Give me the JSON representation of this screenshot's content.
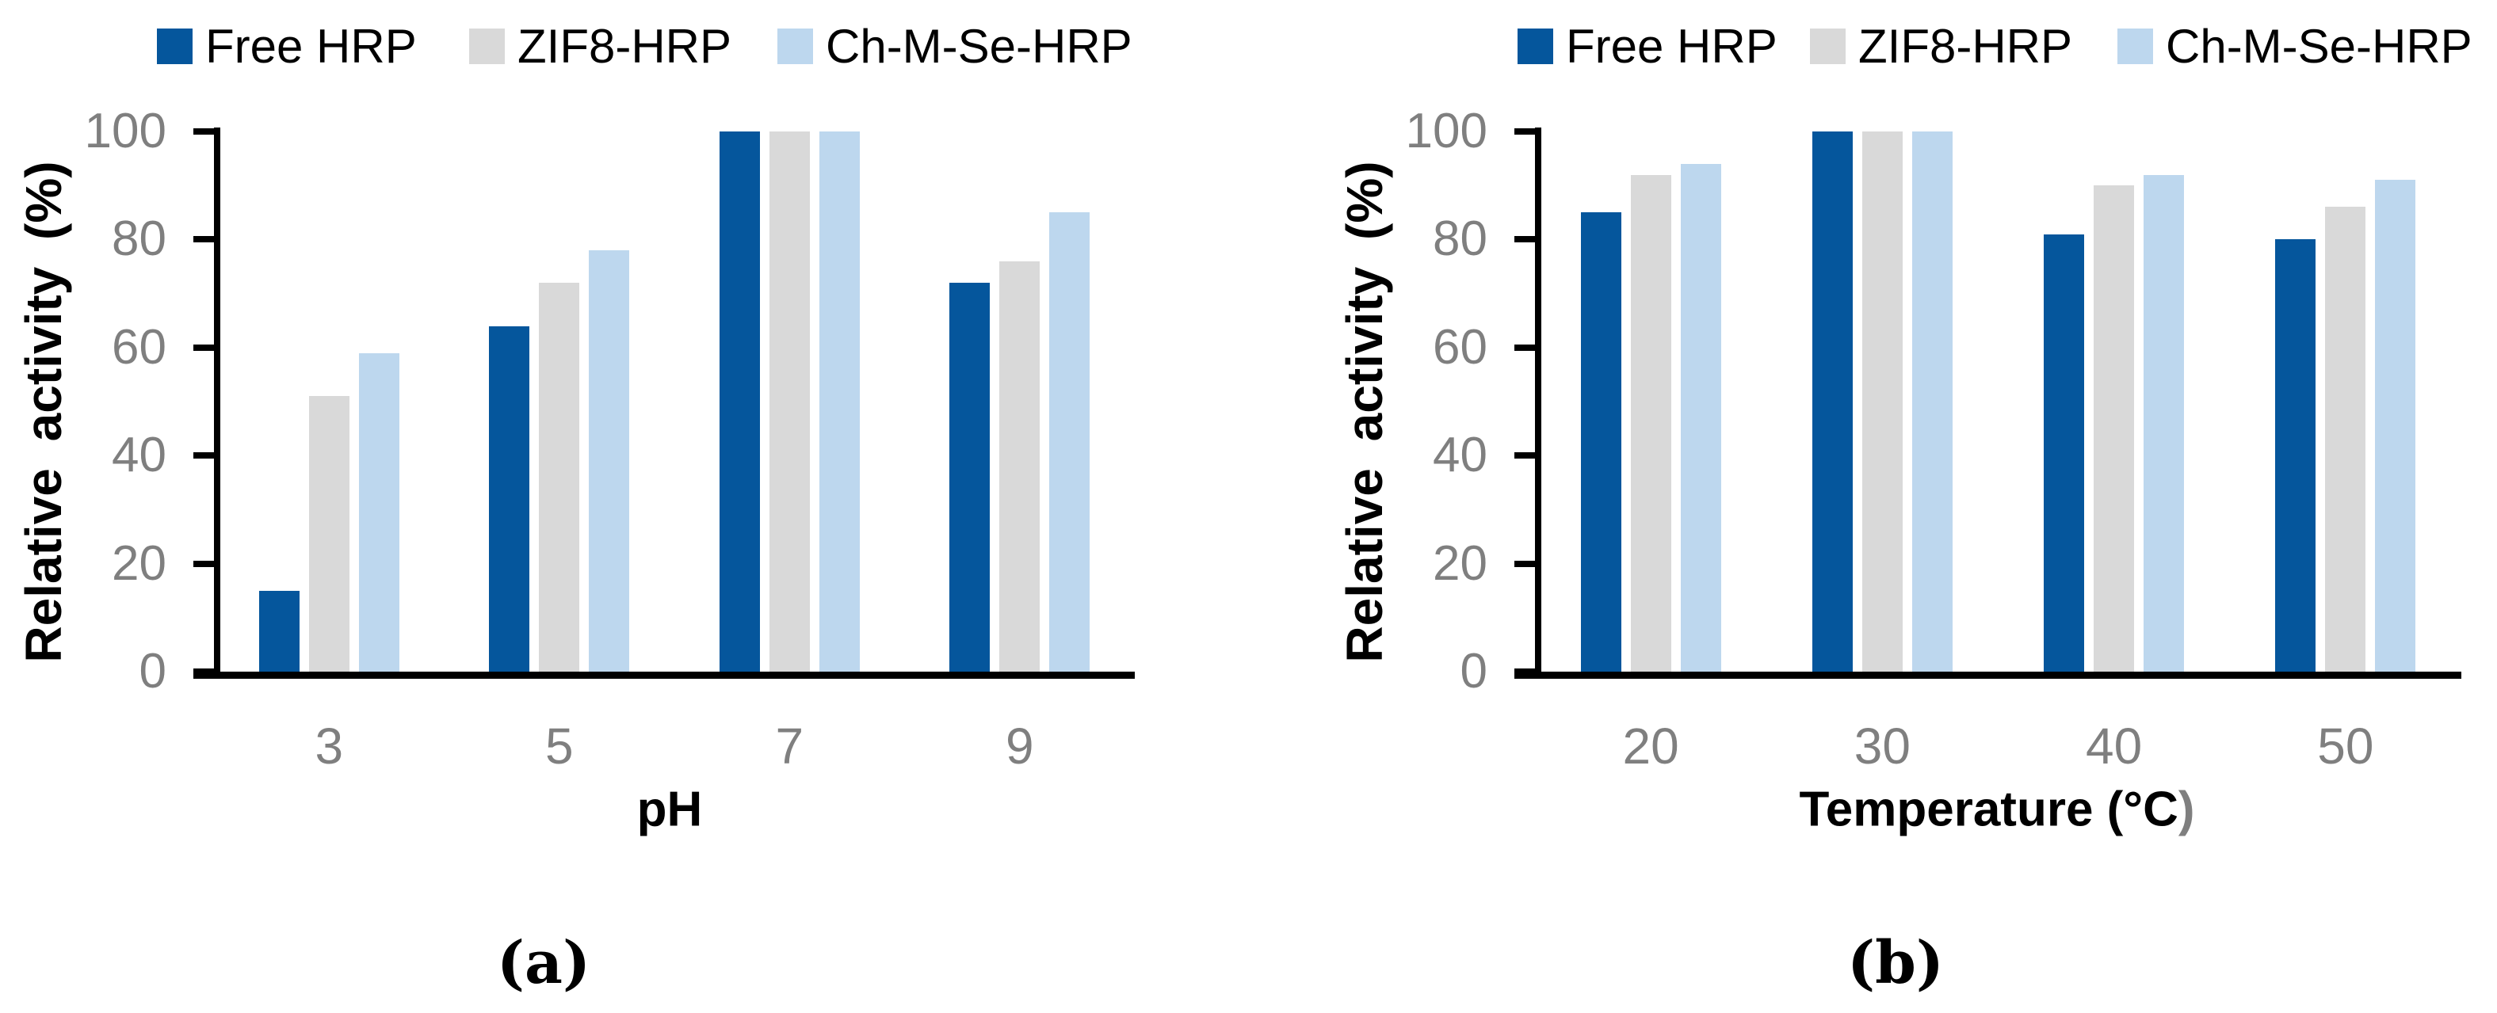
{
  "colors": {
    "series_free_hrp": "#05569C",
    "series_zif8_hrp": "#D9D9D9",
    "series_ch_m_se_hrp": "#BDD7EE",
    "axis_line": "#000000",
    "tick_label_gray": "#7F7F7F",
    "xlabel_paren_gray": "#7F7F7F",
    "background": "#FFFFFF"
  },
  "chart_data": [
    {
      "id": "a",
      "type": "bar",
      "caption": "(a)",
      "ylabel": "Relative activity (%)",
      "xlabel": "pH",
      "xlabel_parts": {
        "black": "pH",
        "gray": ""
      },
      "ylim": [
        0,
        100
      ],
      "yticks": [
        0,
        20,
        40,
        60,
        80,
        100
      ],
      "grid": false,
      "legend_position": "top",
      "categories": [
        "3",
        "5",
        "7",
        "9"
      ],
      "series": [
        {
          "name": "Free HRP",
          "color": "#05569C",
          "values": [
            15,
            64,
            100,
            72
          ]
        },
        {
          "name": "ZIF8-HRP",
          "color": "#D9D9D9",
          "values": [
            51,
            72,
            100,
            76
          ]
        },
        {
          "name": "Ch-M-Se-HRP",
          "color": "#BDD7EE",
          "values": [
            59,
            78,
            100,
            85
          ]
        }
      ]
    },
    {
      "id": "b",
      "type": "bar",
      "caption": "(b)",
      "ylabel": "Relative activity (%)",
      "xlabel": "Temperature (°C)",
      "xlabel_parts": {
        "black": "Temperature (°C",
        "gray": ")"
      },
      "ylim": [
        0,
        100
      ],
      "yticks": [
        0,
        20,
        40,
        60,
        80,
        100
      ],
      "grid": false,
      "legend_position": "top",
      "categories": [
        "20",
        "30",
        "40",
        "50"
      ],
      "series": [
        {
          "name": "Free HRP",
          "color": "#05569C",
          "values": [
            85,
            100,
            81,
            80
          ]
        },
        {
          "name": "ZIF8-HRP",
          "color": "#D9D9D9",
          "values": [
            92,
            100,
            90,
            86
          ]
        },
        {
          "name": "Ch-M-Se-HRP",
          "color": "#BDD7EE",
          "values": [
            94,
            100,
            92,
            91
          ]
        }
      ]
    }
  ]
}
